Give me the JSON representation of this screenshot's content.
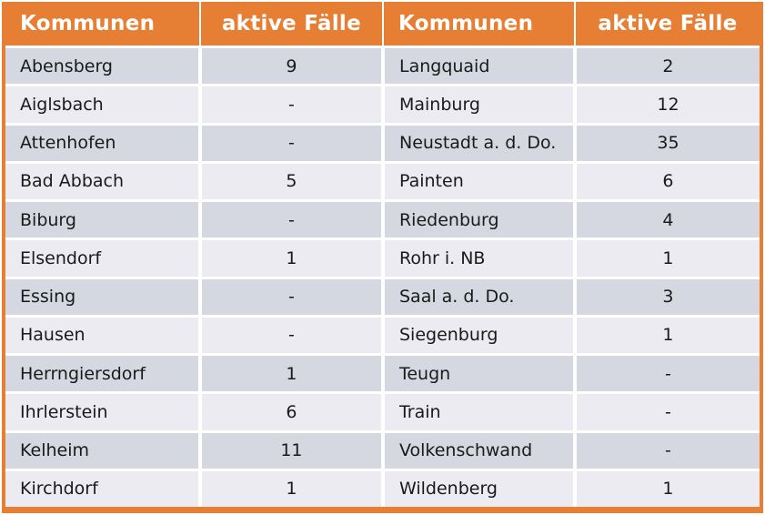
{
  "chart_data": {
    "type": "table",
    "title": "",
    "columns": [
      "Kommunen",
      "aktive Fälle",
      "Kommunen",
      "aktive Fälle"
    ],
    "rows": [
      [
        "Abensberg",
        "9",
        "Langquaid",
        "2"
      ],
      [
        "Aiglsbach",
        "-",
        "Mainburg",
        "12"
      ],
      [
        "Attenhofen",
        "-",
        "Neustadt a. d. Do.",
        "35"
      ],
      [
        "Bad Abbach",
        "5",
        "Painten",
        "6"
      ],
      [
        "Biburg",
        "-",
        "Riedenburg",
        "4"
      ],
      [
        "Elsendorf",
        "1",
        "Rohr i. NB",
        "1"
      ],
      [
        "Essing",
        "-",
        "Saal a. d. Do.",
        "3"
      ],
      [
        "Hausen",
        "-",
        "Siegenburg",
        "1"
      ],
      [
        "Herrngiersdorf",
        "1",
        "Teugn",
        "-"
      ],
      [
        "Ihrlerstein",
        "6",
        "Train",
        "-"
      ],
      [
        "Kelheim",
        "11",
        "Volkenschwand",
        "-"
      ],
      [
        "Kirchdorf",
        "1",
        "Wildenberg",
        "1"
      ]
    ],
    "layout": {
      "column_alignments": [
        "left",
        "center",
        "left",
        "center"
      ],
      "striped_rows": true
    },
    "colors": {
      "header_bg": "#e67e33",
      "header_text": "#ffffff",
      "row_odd_bg": "#d5d7e1",
      "row_even_bg": "#ebebf1",
      "body_text": "#1a1a1a",
      "outer_border": "#e67e33",
      "cell_gap": "#ffffff"
    }
  }
}
